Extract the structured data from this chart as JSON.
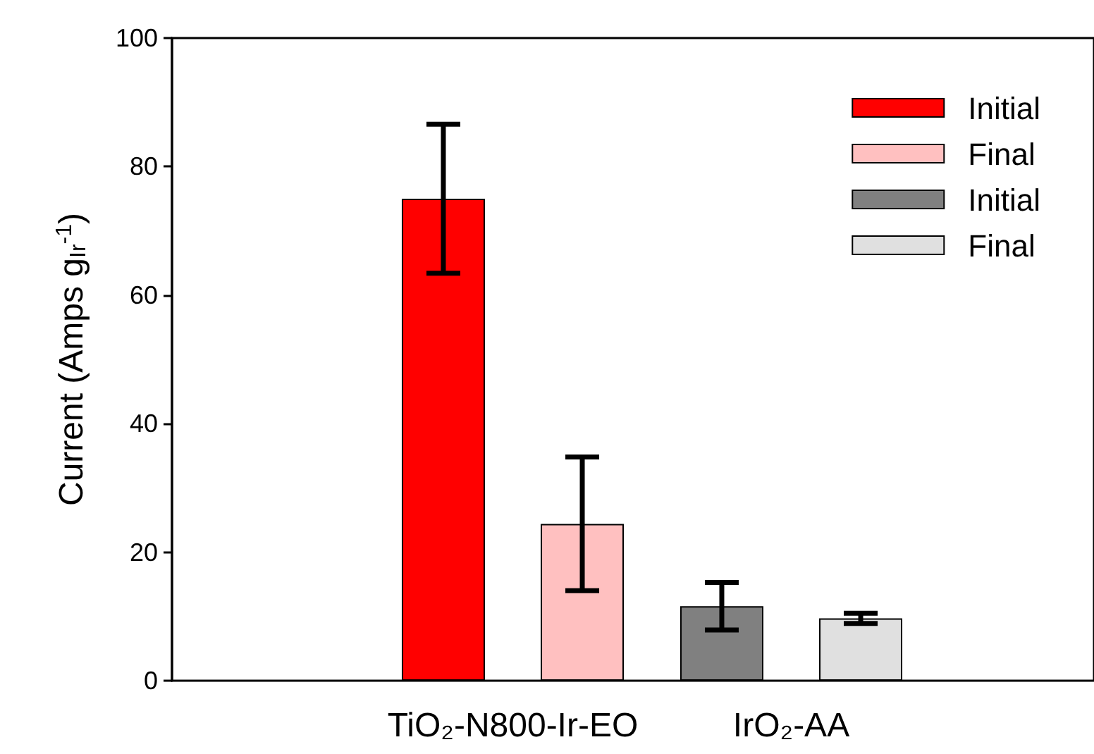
{
  "chart_data": {
    "type": "bar",
    "ylabel": "Current (Amps g$_{Ir}$$^{-1}$)",
    "categories": [
      "TiO₂-N800-Ir-EO",
      "IrO₂-AA"
    ],
    "series": [
      {
        "name": "Initial",
        "color": "#ff0000",
        "values": [
          75.0,
          null
        ],
        "errors": [
          11.6,
          null
        ]
      },
      {
        "name": "Final",
        "color": "#ffc0c0",
        "values": [
          24.4,
          null
        ],
        "errors": [
          10.4,
          null
        ]
      },
      {
        "name": "Initial",
        "color": "#808080",
        "values": [
          null,
          11.6
        ],
        "errors": [
          null,
          3.7
        ]
      },
      {
        "name": "Final",
        "color": "#e0e0e0",
        "values": [
          null,
          9.7
        ],
        "errors": [
          null,
          0.8
        ]
      }
    ],
    "ylim": [
      0,
      100
    ],
    "yticks": [
      0,
      20,
      40,
      60,
      80,
      100
    ],
    "legend": "top right"
  }
}
